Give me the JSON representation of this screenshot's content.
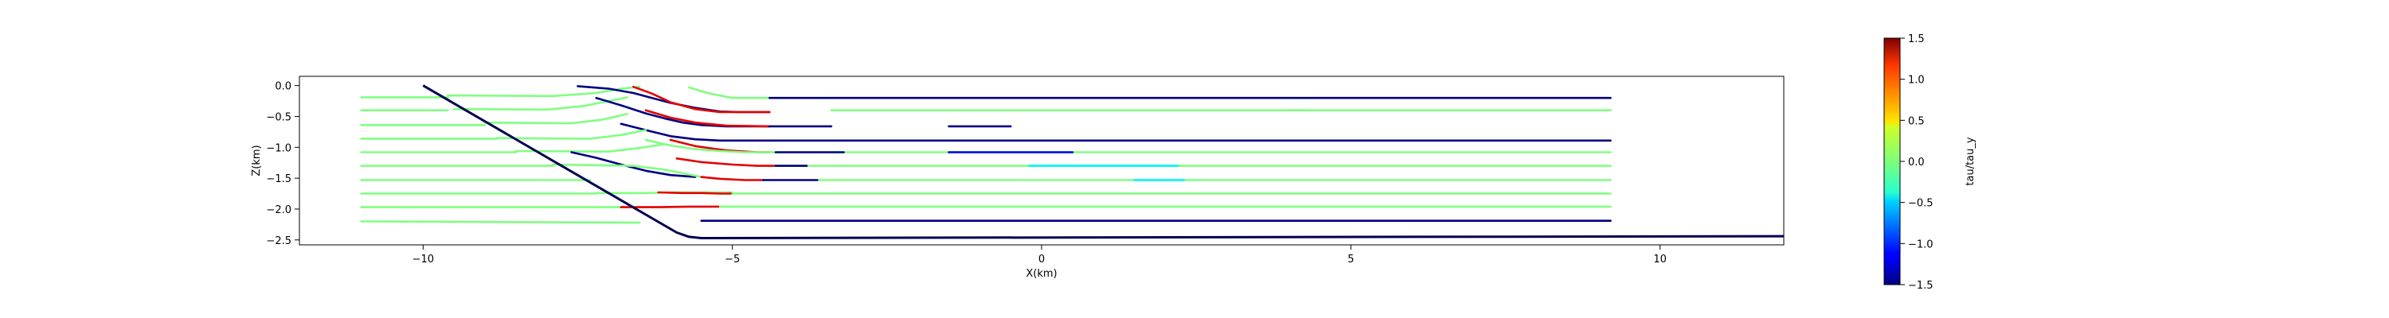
{
  "chart_data": {
    "type": "line",
    "xlabel": "X(km)",
    "ylabel": "Z(km)",
    "xlim": [
      -12,
      12
    ],
    "ylim": [
      -2.58,
      0.15
    ],
    "xticks": [
      -10,
      -5,
      0,
      5,
      10
    ],
    "xtick_labels": [
      "−10",
      "−5",
      "0",
      "5",
      "10"
    ],
    "yticks": [
      0.0,
      -0.5,
      -1.0,
      -1.5,
      -2.0,
      -2.5
    ],
    "ytick_labels": [
      "0.0",
      "−0.5",
      "−1.0",
      "−1.5",
      "−2.0",
      "−2.5"
    ],
    "grid": false,
    "colorbar": {
      "label": "tau/tau_y",
      "range": [
        -1.5,
        1.5
      ],
      "ticks": [
        1.5,
        1.0,
        0.5,
        0.0,
        -0.5,
        -1.0,
        -1.5
      ],
      "tick_labels": [
        "1.5",
        "1.0",
        "0.5",
        "0.0",
        "−0.5",
        "−1.0",
        "−1.5"
      ],
      "colormap": "jet"
    },
    "boundary": {
      "color": "#000050",
      "x": [
        -10.0,
        -5.9,
        -5.7,
        -5.5,
        12.0
      ],
      "z": [
        0.0,
        -2.38,
        -2.45,
        -2.47,
        -2.44
      ]
    },
    "streamlines": [
      {
        "x": [
          -11.0,
          -9.6
        ],
        "z": [
          -0.19,
          -0.19
        ],
        "value": 0.0
      },
      {
        "x": [
          -9.6,
          -7.9,
          -7.2,
          -6.8,
          -6.5
        ],
        "z": [
          -0.16,
          -0.17,
          -0.12,
          -0.05,
          -0.02
        ],
        "value": 0.0
      },
      {
        "x": [
          -7.5,
          -7.0,
          -6.6,
          -6.3,
          -6.0,
          -5.6,
          -5.2,
          -4.9,
          -4.4
        ],
        "z": [
          -0.01,
          -0.05,
          -0.12,
          -0.2,
          -0.28,
          -0.36,
          -0.42,
          -0.43,
          -0.43
        ],
        "value": -1.5
      },
      {
        "x": [
          -6.6,
          -6.3,
          -6.0,
          -5.6,
          -5.2,
          -4.4
        ],
        "z": [
          -0.02,
          -0.13,
          -0.27,
          -0.38,
          -0.43,
          -0.43
        ],
        "value": 1.2
      },
      {
        "x": [
          -5.7,
          -5.4,
          -5.0,
          -4.4
        ],
        "z": [
          -0.03,
          -0.12,
          -0.2,
          -0.2
        ],
        "value": 0.0
      },
      {
        "x": [
          -4.4,
          9.2
        ],
        "z": [
          -0.2,
          -0.2
        ],
        "value": -1.5
      },
      {
        "x": [
          -11.0,
          -9.6
        ],
        "z": [
          -0.4,
          -0.4
        ],
        "value": 0.0
      },
      {
        "x": [
          -9.5,
          -8.0,
          -7.4,
          -7.0,
          -6.7
        ],
        "z": [
          -0.38,
          -0.39,
          -0.33,
          -0.25,
          -0.19
        ],
        "value": 0.0
      },
      {
        "x": [
          -7.2,
          -6.8,
          -6.4,
          -6.1,
          -5.8,
          -5.5,
          -5.1,
          -4.7,
          -4.4
        ],
        "z": [
          -0.2,
          -0.32,
          -0.45,
          -0.53,
          -0.6,
          -0.64,
          -0.66,
          -0.66,
          -0.66
        ],
        "value": -1.5
      },
      {
        "x": [
          -6.4,
          -6.0,
          -5.6,
          -5.1,
          -4.4
        ],
        "z": [
          -0.4,
          -0.52,
          -0.6,
          -0.65,
          -0.66
        ],
        "value": 1.2
      },
      {
        "x": [
          -4.4,
          -3.4
        ],
        "z": [
          -0.66,
          -0.66
        ],
        "value": -1.5
      },
      {
        "x": [
          -3.4,
          9.2
        ],
        "z": [
          -0.4,
          -0.4
        ],
        "value": 0.0
      },
      {
        "x": [
          -11.0,
          -9.0
        ],
        "z": [
          -0.64,
          -0.64
        ],
        "value": 0.0
      },
      {
        "x": [
          -9.0,
          -7.6,
          -7.1,
          -6.7
        ],
        "z": [
          -0.6,
          -0.61,
          -0.55,
          -0.46
        ],
        "value": 0.0
      },
      {
        "x": [
          -6.8,
          -6.4,
          -6.0,
          -5.6,
          -5.2,
          -4.8,
          -4.4
        ],
        "z": [
          -0.62,
          -0.72,
          -0.82,
          -0.87,
          -0.89,
          -0.89,
          -0.89
        ],
        "value": -1.5
      },
      {
        "x": [
          -6.0,
          -5.6,
          -5.1,
          -4.6,
          -4.4
        ],
        "z": [
          -0.88,
          -0.98,
          -1.05,
          -1.08,
          -1.08
        ],
        "value": 1.2
      },
      {
        "x": [
          -4.4,
          9.2
        ],
        "z": [
          -0.89,
          -0.89
        ],
        "value": -1.5
      },
      {
        "x": [
          -1.5,
          -0.5
        ],
        "z": [
          -0.66,
          -0.66
        ],
        "value": -1.5
      },
      {
        "x": [
          -11.0,
          -8.8
        ],
        "z": [
          -0.86,
          -0.86
        ],
        "value": 0.0
      },
      {
        "x": [
          -8.8,
          -7.3,
          -6.8,
          -6.4
        ],
        "z": [
          -0.85,
          -0.86,
          -0.8,
          -0.72
        ],
        "value": 0.0
      },
      {
        "x": [
          -6.4,
          -6.0,
          -5.6,
          -5.2,
          -4.8,
          -4.4
        ],
        "z": [
          -0.88,
          -0.97,
          -1.03,
          -1.06,
          -1.08,
          -1.08
        ],
        "value": 0.0
      },
      {
        "x": [
          -4.4,
          9.2
        ],
        "z": [
          -1.08,
          -1.08
        ],
        "value": 0.0
      },
      {
        "x": [
          -4.3,
          -3.2
        ],
        "z": [
          -1.08,
          -1.08
        ],
        "value": -1.5
      },
      {
        "x": [
          -1.5,
          0.5
        ],
        "z": [
          -1.08,
          -1.08
        ],
        "value": -1.2
      },
      {
        "x": [
          -11.0,
          -8.5
        ],
        "z": [
          -1.08,
          -1.08
        ],
        "value": 0.0
      },
      {
        "x": [
          -8.5,
          -7.0,
          -6.5,
          -6.1
        ],
        "z": [
          -1.06,
          -1.07,
          -1.01,
          -0.95
        ],
        "value": 0.0
      },
      {
        "x": [
          -7.6,
          -7.2,
          -6.8,
          -6.4,
          -6.0,
          -5.6
        ],
        "z": [
          -1.08,
          -1.17,
          -1.28,
          -1.38,
          -1.45,
          -1.48
        ],
        "value": -1.5
      },
      {
        "x": [
          -5.9,
          -5.5,
          -5.0,
          -4.6,
          -4.3
        ],
        "z": [
          -1.18,
          -1.24,
          -1.28,
          -1.3,
          -1.3
        ],
        "value": 1.2
      },
      {
        "x": [
          -4.3,
          9.2
        ],
        "z": [
          -1.3,
          -1.3
        ],
        "value": 0.0
      },
      {
        "x": [
          -4.3,
          -3.8
        ],
        "z": [
          -1.3,
          -1.3
        ],
        "value": -1.5
      },
      {
        "x": [
          -0.2,
          2.2
        ],
        "z": [
          -1.3,
          -1.3
        ],
        "value": -0.4
      },
      {
        "x": [
          -11.0,
          -7.9
        ],
        "z": [
          -1.3,
          -1.3
        ],
        "value": 0.0
      },
      {
        "x": [
          -7.9,
          -6.6,
          -6.1,
          -5.8,
          -5.5
        ],
        "z": [
          -1.28,
          -1.3,
          -1.36,
          -1.42,
          -1.48
        ],
        "value": 0.0
      },
      {
        "x": [
          -5.5,
          -5.2,
          -4.8,
          -4.5
        ],
        "z": [
          -1.48,
          -1.51,
          -1.53,
          -1.53
        ],
        "value": 1.2
      },
      {
        "x": [
          -4.5,
          -3.6
        ],
        "z": [
          -1.53,
          -1.53
        ],
        "value": -1.5
      },
      {
        "x": [
          -3.6,
          9.2
        ],
        "z": [
          -1.53,
          -1.53
        ],
        "value": 0.0
      },
      {
        "x": [
          1.5,
          2.3
        ],
        "z": [
          -1.53,
          -1.53
        ],
        "value": -0.4
      },
      {
        "x": [
          -11.0,
          -7.3
        ],
        "z": [
          -1.53,
          -1.53
        ],
        "value": 0.0
      },
      {
        "x": [
          -11.0,
          -7.2
        ],
        "z": [
          -1.75,
          -1.75
        ],
        "value": 0.0
      },
      {
        "x": [
          -7.2,
          -6.4,
          -6.0,
          -5.6,
          -5.0
        ],
        "z": [
          -1.74,
          -1.74,
          -1.73,
          -1.73,
          -1.73
        ],
        "value": 0.0
      },
      {
        "x": [
          -6.2,
          -5.8,
          -5.5,
          -5.2,
          -5.0
        ],
        "z": [
          -1.73,
          -1.74,
          -1.74,
          -1.75,
          -1.75
        ],
        "value": 1.2
      },
      {
        "x": [
          -5.0,
          9.2
        ],
        "z": [
          -1.75,
          -1.75
        ],
        "value": 0.0
      },
      {
        "x": [
          -11.0,
          -6.8
        ],
        "z": [
          -1.97,
          -1.97
        ],
        "value": 0.0
      },
      {
        "x": [
          -6.8,
          -6.2,
          -5.7,
          -5.2
        ],
        "z": [
          -1.97,
          -1.97,
          -1.96,
          -1.96
        ],
        "value": 1.2
      },
      {
        "x": [
          -5.2,
          9.2
        ],
        "z": [
          -1.96,
          -1.96
        ],
        "value": 0.0
      },
      {
        "x": [
          -11.0,
          -6.5
        ],
        "z": [
          -2.2,
          -2.22
        ],
        "value": 0.0
      },
      {
        "x": [
          -5.5,
          9.2
        ],
        "z": [
          -2.19,
          -2.19
        ],
        "value": -1.5
      },
      {
        "x": [
          4.0,
          4.3
        ],
        "z": [
          -0.4,
          -0.4
        ],
        "value": 0.0
      }
    ]
  }
}
